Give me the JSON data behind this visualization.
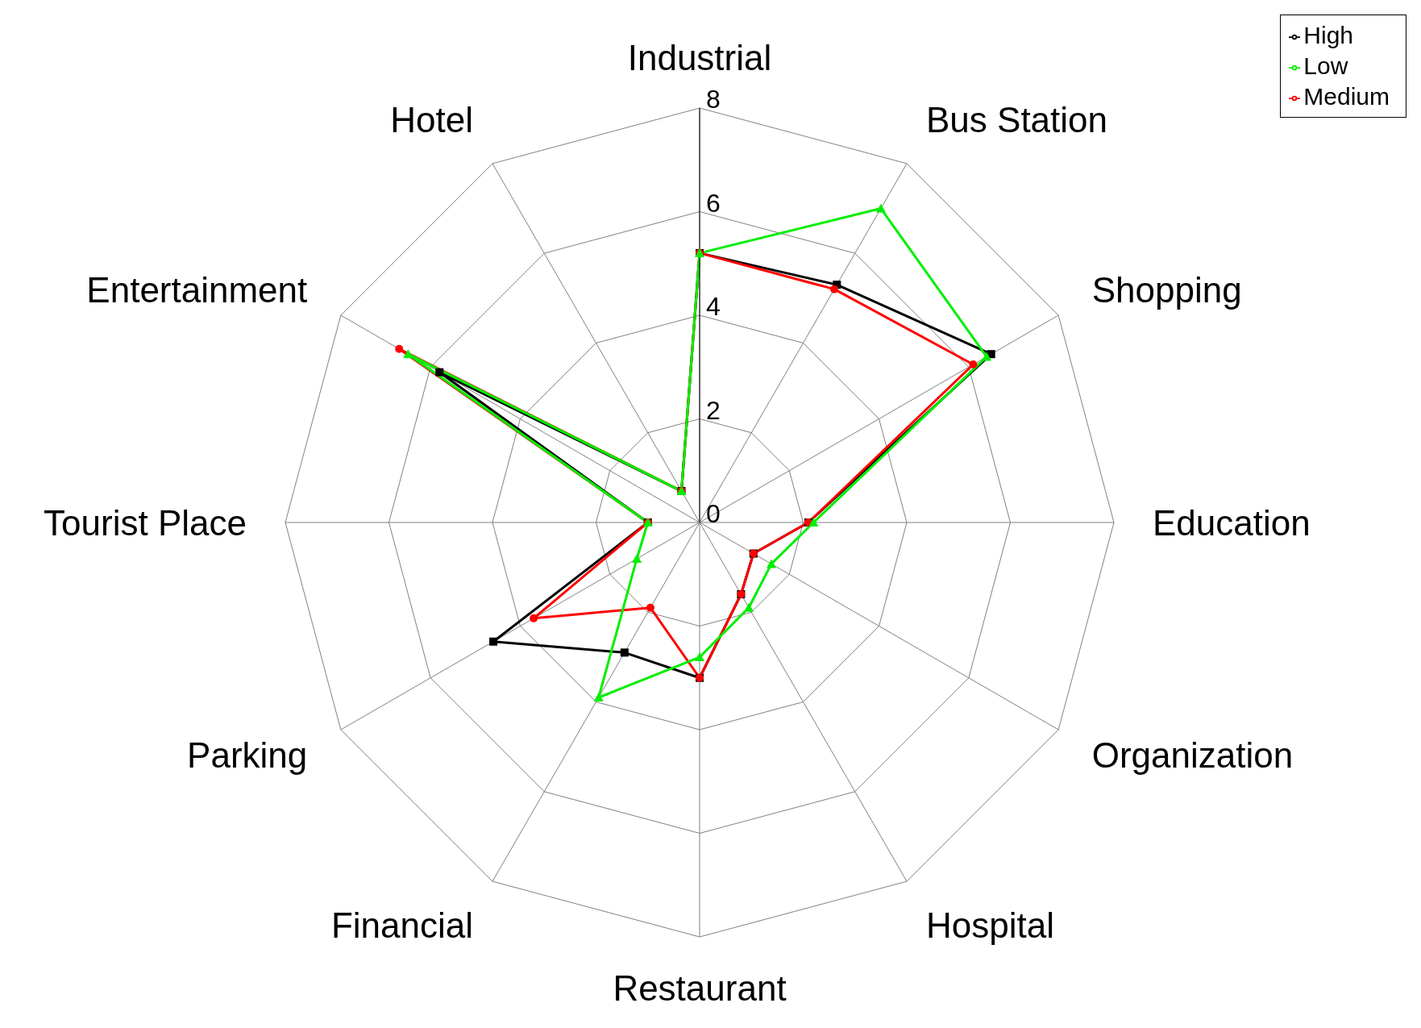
{
  "chart_data": {
    "type": "radar",
    "categories": [
      "Industrial",
      "Bus Station",
      "Shopping",
      "Education",
      "Organization",
      "Hospital",
      "Restaurant",
      "Financial",
      "Parking",
      "Tourist Place",
      "Entertainment",
      "Hotel"
    ],
    "series": [
      {
        "name": "High",
        "color": "#000000",
        "marker": "square",
        "values": [
          5.2,
          5.3,
          6.5,
          2.1,
          1.2,
          1.6,
          3.0,
          2.9,
          4.6,
          1.0,
          5.8,
          0.7
        ]
      },
      {
        "name": "Medium",
        "color": "#ff0000",
        "marker": "circle",
        "values": [
          5.2,
          5.2,
          6.1,
          2.1,
          1.2,
          1.6,
          3.0,
          1.9,
          3.7,
          1.0,
          6.7,
          0.7
        ]
      },
      {
        "name": "Low",
        "color": "#00ee00",
        "marker": "triangle",
        "values": [
          5.2,
          7.0,
          6.4,
          2.2,
          1.6,
          1.9,
          2.6,
          3.9,
          1.4,
          1.0,
          6.5,
          0.7
        ]
      }
    ],
    "ylim": [
      0,
      8
    ],
    "yticks": [
      0,
      2,
      4,
      6,
      8
    ],
    "grid": true,
    "legend": "top right"
  }
}
